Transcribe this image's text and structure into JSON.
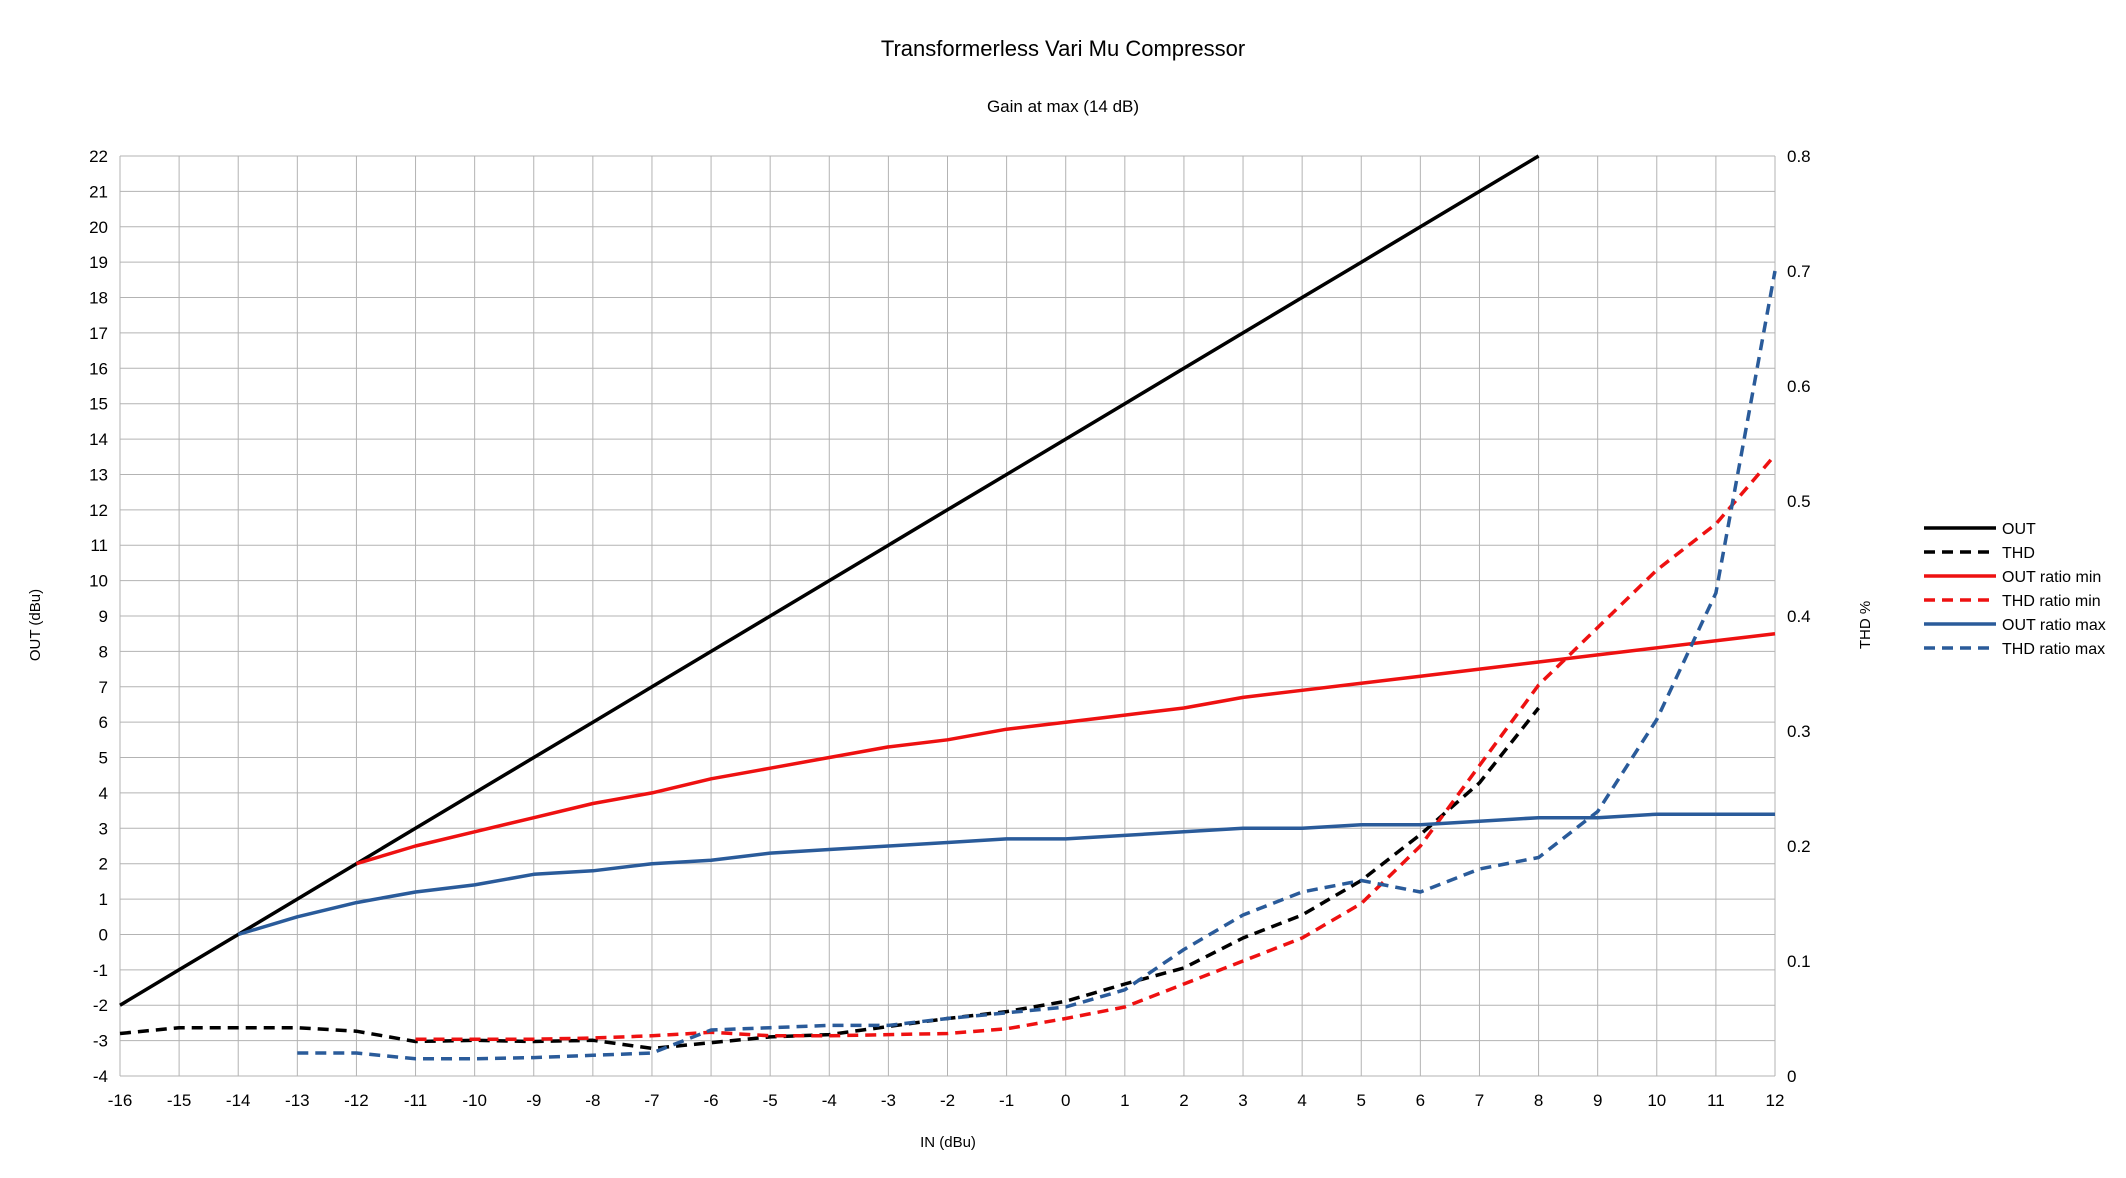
{
  "chart_data": {
    "type": "line",
    "title": "Transformerless Vari Mu Compressor",
    "subtitle": "Gain at max (14 dB)",
    "xlabel": "IN (dBu)",
    "ylabel": "OUT (dBu)",
    "y2label": "THD %",
    "xlim": [
      -16,
      12
    ],
    "ylim": [
      -4,
      22
    ],
    "y2lim": [
      0,
      0.8
    ],
    "x_ticks": [
      -16,
      -15,
      -14,
      -13,
      -12,
      -11,
      -10,
      -9,
      -8,
      -7,
      -6,
      -5,
      -4,
      -3,
      -2,
      -1,
      0,
      1,
      2,
      3,
      4,
      5,
      6,
      7,
      8,
      9,
      10,
      11,
      12
    ],
    "y_ticks": [
      -4,
      -3,
      -2,
      -1,
      0,
      1,
      2,
      3,
      4,
      5,
      6,
      7,
      8,
      9,
      10,
      11,
      12,
      13,
      14,
      15,
      16,
      17,
      18,
      19,
      20,
      21,
      22
    ],
    "y2_ticks": [
      "0",
      "0.1",
      "0.2",
      "0.3",
      "0.4",
      "0.5",
      "0.6",
      "0.7",
      "0.8"
    ],
    "grid": true,
    "legend_position": "right",
    "series": [
      {
        "name": "OUT",
        "axis": "left",
        "color": "#000000",
        "dashed": false,
        "x": [
          -16,
          -15,
          -14,
          -13,
          -12,
          -11,
          -10,
          -9,
          -8,
          -7,
          -6,
          -5,
          -4,
          -3,
          -2,
          -1,
          0,
          1,
          2,
          3,
          4,
          5,
          6,
          7,
          8
        ],
        "values": [
          -2,
          -1,
          0,
          1,
          2,
          3,
          4,
          5,
          6,
          7,
          8,
          9,
          10,
          11,
          12,
          13,
          14,
          15,
          16,
          17,
          18,
          19,
          20,
          21,
          22
        ]
      },
      {
        "name": "THD",
        "axis": "right",
        "color": "#000000",
        "dashed": true,
        "x": [
          -16,
          -15,
          -14,
          -13,
          -12,
          -11,
          -10,
          -9,
          -8,
          -7,
          -6,
          -5,
          -4,
          -3,
          -2,
          -1,
          0,
          1,
          2,
          3,
          4,
          5,
          6,
          7,
          8
        ],
        "values": [
          0.037,
          0.042,
          0.042,
          0.042,
          0.039,
          0.03,
          0.031,
          0.03,
          0.031,
          0.024,
          0.029,
          0.034,
          0.036,
          0.043,
          0.05,
          0.056,
          0.065,
          0.08,
          0.094,
          0.12,
          0.14,
          0.17,
          0.21,
          0.255,
          0.32
        ]
      },
      {
        "name": "OUT ratio min",
        "axis": "left",
        "color": "#ee1111",
        "dashed": false,
        "x": [
          -12,
          -11,
          -10,
          -9,
          -8,
          -7,
          -6,
          -5,
          -4,
          -3,
          -2,
          -1,
          0,
          1,
          2,
          3,
          4,
          5,
          6,
          7,
          8,
          9,
          10,
          11,
          12
        ],
        "values": [
          2,
          2.5,
          2.9,
          3.3,
          3.7,
          4.0,
          4.4,
          4.7,
          5.0,
          5.3,
          5.5,
          5.8,
          6.0,
          6.2,
          6.4,
          6.7,
          6.9,
          7.1,
          7.3,
          7.5,
          7.7,
          7.9,
          8.1,
          8.3,
          8.5
        ]
      },
      {
        "name": "THD ratio min",
        "axis": "right",
        "color": "#ee1111",
        "dashed": true,
        "x": [
          -11,
          -10,
          -9,
          -8,
          -7,
          -6,
          -5,
          -4,
          -3,
          -2,
          -1,
          0,
          1,
          2,
          3,
          4,
          5,
          6,
          7,
          8,
          9,
          10,
          11,
          12
        ],
        "values": [
          0.032,
          0.032,
          0.032,
          0.033,
          0.035,
          0.038,
          0.035,
          0.035,
          0.036,
          0.037,
          0.041,
          0.05,
          0.06,
          0.08,
          0.1,
          0.12,
          0.15,
          0.2,
          0.27,
          0.34,
          0.39,
          0.44,
          0.48,
          0.54
        ]
      },
      {
        "name": "OUT ratio max",
        "axis": "left",
        "color": "#2a5b9a",
        "dashed": false,
        "x": [
          -14,
          -13,
          -12,
          -11,
          -10,
          -9,
          -8,
          -7,
          -6,
          -5,
          -4,
          -3,
          -2,
          -1,
          0,
          1,
          2,
          3,
          4,
          5,
          6,
          7,
          8,
          9,
          10,
          11,
          12
        ],
        "values": [
          0,
          0.5,
          0.9,
          1.2,
          1.4,
          1.7,
          1.8,
          2.0,
          2.1,
          2.3,
          2.4,
          2.5,
          2.6,
          2.7,
          2.7,
          2.8,
          2.9,
          3.0,
          3.0,
          3.1,
          3.1,
          3.2,
          3.3,
          3.3,
          3.4,
          3.4,
          3.4
        ]
      },
      {
        "name": "THD ratio max",
        "axis": "right",
        "color": "#2a5b9a",
        "dashed": true,
        "x": [
          -13,
          -12,
          -11,
          -10,
          -9,
          -8,
          -7,
          -6,
          -5,
          -4,
          -3,
          -2,
          -1,
          0,
          1,
          2,
          3,
          4,
          5,
          6,
          7,
          8,
          9,
          10,
          11,
          12
        ],
        "values": [
          0.02,
          0.02,
          0.015,
          0.015,
          0.016,
          0.018,
          0.02,
          0.04,
          0.042,
          0.044,
          0.044,
          0.05,
          0.055,
          0.06,
          0.075,
          0.11,
          0.14,
          0.16,
          0.17,
          0.16,
          0.18,
          0.19,
          0.23,
          0.31,
          0.42,
          0.7
        ]
      }
    ]
  }
}
